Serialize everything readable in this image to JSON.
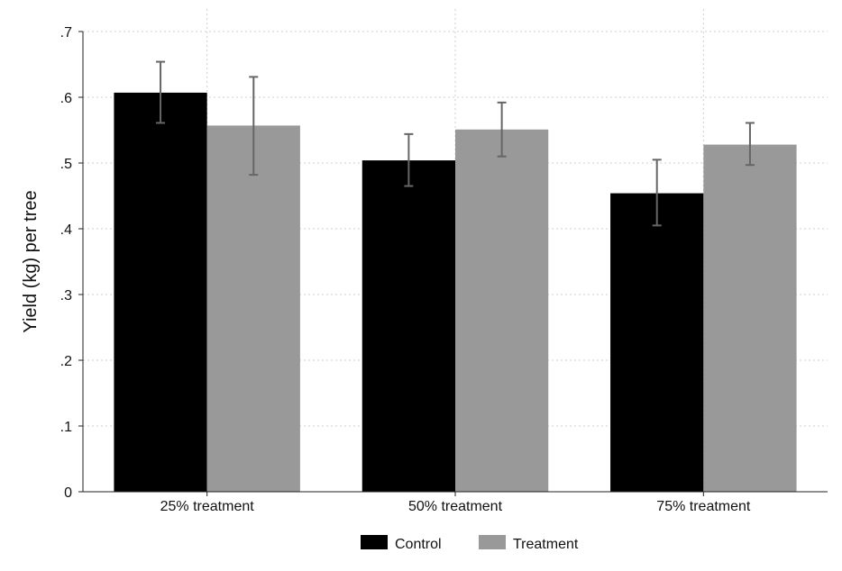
{
  "chart_data": {
    "type": "bar",
    "categories": [
      "25% treatment",
      "50% treatment",
      "75% treatment"
    ],
    "series": [
      {
        "name": "Control",
        "color": "#000000",
        "values": [
          0.607,
          0.504,
          0.454
        ],
        "ci_low": [
          0.561,
          0.465,
          0.405
        ],
        "ci_high": [
          0.654,
          0.544,
          0.505
        ]
      },
      {
        "name": "Treatment",
        "color": "#999999",
        "values": [
          0.557,
          0.551,
          0.528
        ],
        "ci_low": [
          0.482,
          0.51,
          0.497
        ],
        "ci_high": [
          0.631,
          0.592,
          0.561
        ]
      }
    ],
    "error_bar_color": "#666666",
    "ylabel": "Yield (kg) per tree",
    "xlabel": "",
    "ylim": [
      0,
      0.7
    ],
    "yticks": [
      0,
      0.1,
      0.2,
      0.3,
      0.4,
      0.5,
      0.6,
      0.7
    ],
    "ytick_labels": [
      "0",
      ".1",
      ".2",
      ".3",
      ".4",
      ".5",
      ".6",
      ".7"
    ],
    "grid": true,
    "legend_position": "bottom-center"
  }
}
